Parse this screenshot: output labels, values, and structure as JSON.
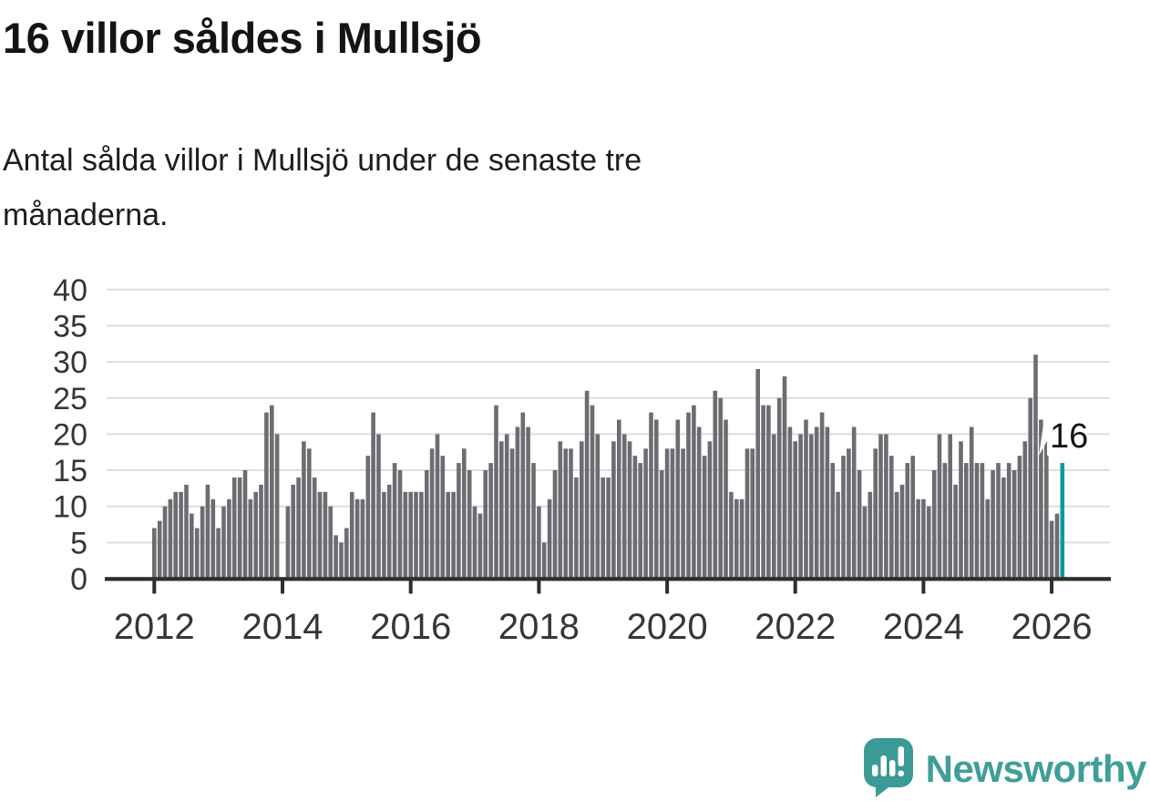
{
  "header": {
    "title": "16 villor såldes i Mullsjö",
    "subtitle_line1": "Antal sålda villor i Mullsjö under de senaste tre",
    "subtitle_line2": "månaderna."
  },
  "chart_data": {
    "type": "bar",
    "title": "Antal sålda villor i Mullsjö under de senaste tre månaderna",
    "x_start": {
      "year": 2012,
      "month": 1
    },
    "x_frequency": "monthly",
    "values": [
      7,
      8,
      10,
      11,
      12,
      12,
      13,
      9,
      7,
      10,
      13,
      11,
      7,
      10,
      11,
      14,
      14,
      15,
      11,
      12,
      13,
      23,
      24,
      20,
      0,
      10,
      13,
      14,
      19,
      18,
      14,
      12,
      12,
      10,
      6,
      5,
      7,
      12,
      11,
      11,
      17,
      23,
      20,
      12,
      13,
      16,
      15,
      12,
      12,
      12,
      12,
      15,
      18,
      20,
      17,
      12,
      12,
      16,
      18,
      15,
      10,
      9,
      15,
      16,
      24,
      19,
      20,
      18,
      21,
      23,
      21,
      16,
      10,
      5,
      11,
      15,
      19,
      18,
      18,
      14,
      19,
      26,
      24,
      20,
      14,
      14,
      19,
      22,
      20,
      19,
      17,
      16,
      18,
      23,
      22,
      15,
      18,
      18,
      22,
      18,
      23,
      24,
      21,
      17,
      19,
      26,
      25,
      22,
      12,
      11,
      11,
      18,
      18,
      29,
      24,
      24,
      20,
      25,
      28,
      21,
      19,
      20,
      22,
      20,
      21,
      23,
      21,
      16,
      12,
      17,
      18,
      21,
      15,
      10,
      12,
      18,
      20,
      20,
      17,
      12,
      13,
      16,
      17,
      11,
      11,
      10,
      15,
      20,
      16,
      20,
      13,
      19,
      16,
      21,
      16,
      16,
      11,
      15,
      16,
      14,
      16,
      15,
      17,
      19,
      25,
      31,
      22,
      19,
      8,
      9,
      16
    ],
    "highlight_index": 170,
    "annotation": {
      "text": "16"
    },
    "yticks": [
      0,
      5,
      10,
      15,
      20,
      25,
      30,
      35,
      40
    ],
    "ylim": [
      0,
      40
    ],
    "xticks": [
      2012,
      2014,
      2016,
      2018,
      2020,
      2022,
      2024,
      2026
    ],
    "grid": true,
    "legend": "none",
    "colors": {
      "bar": "#6c6c72",
      "highlight": "#11989a",
      "grid": "#dddddd",
      "axis": "#2e2e2e",
      "tick_label": "#363636",
      "annotation_text": "#141414",
      "annotation_bg": "#ffffff"
    }
  },
  "logo": {
    "text": "Newsworthy",
    "icon": "newsworthy-speech-bubble-bar-chart-icon",
    "text_color": "#409e99",
    "icon_color": "#3b9a95"
  }
}
